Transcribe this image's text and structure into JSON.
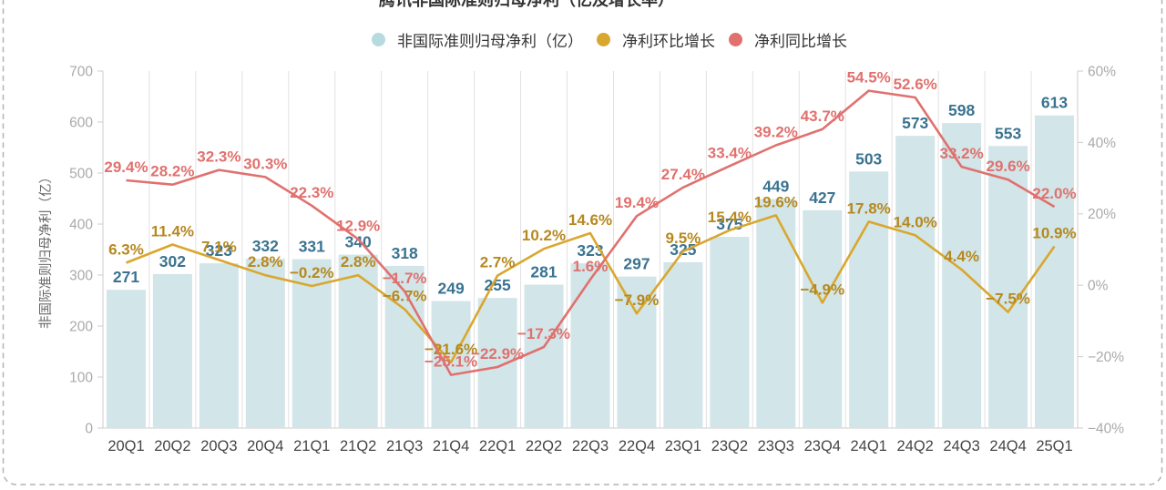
{
  "title": "腾讯非国际准则归母净利（亿及增长率）",
  "legend": {
    "items": [
      {
        "label": "非国际准则归母净利（亿）",
        "color": "#b5dbdf"
      },
      {
        "label": "净利环比增长",
        "color": "#d9a72f"
      },
      {
        "label": "净利同比增长",
        "color": "#e0716e"
      }
    ]
  },
  "chart_data": {
    "type": "bar+line",
    "categories": [
      "20Q1",
      "20Q2",
      "20Q3",
      "20Q4",
      "21Q1",
      "21Q2",
      "21Q3",
      "21Q4",
      "22Q1",
      "22Q2",
      "22Q3",
      "22Q4",
      "23Q1",
      "23Q2",
      "23Q3",
      "23Q4",
      "24Q1",
      "24Q2",
      "24Q3",
      "24Q4",
      "25Q1"
    ],
    "series": [
      {
        "name": "非国际准则归母净利（亿）",
        "type": "bar",
        "axis": "left",
        "color": "#d2e5e8",
        "label_color": "#3a7390",
        "values": [
          271,
          302,
          323,
          332,
          331,
          340,
          318,
          249,
          255,
          281,
          323,
          297,
          325,
          375,
          449,
          427,
          503,
          573,
          598,
          553,
          613
        ]
      },
      {
        "name": "净利环比增长",
        "type": "line",
        "axis": "right",
        "color": "#d9a72f",
        "label_color": "#b6891f",
        "values": [
          6.3,
          11.4,
          7.1,
          2.8,
          -0.2,
          2.8,
          -6.7,
          -21.6,
          2.7,
          10.2,
          14.6,
          -7.9,
          9.5,
          15.4,
          19.6,
          -4.9,
          17.8,
          14.0,
          4.4,
          -7.5,
          10.9
        ]
      },
      {
        "name": "净利同比增长",
        "type": "line",
        "axis": "right",
        "color": "#e0716e",
        "label_color": "#e0716e",
        "values": [
          29.4,
          28.2,
          32.3,
          30.3,
          22.3,
          12.9,
          -1.7,
          -25.1,
          -22.9,
          -17.3,
          1.6,
          19.4,
          27.4,
          33.4,
          39.2,
          43.7,
          54.5,
          52.6,
          33.2,
          29.6,
          22.0
        ]
      }
    ],
    "left_axis": {
      "title": "非国际准则归母净利（亿）",
      "min": 0,
      "max": 700,
      "tick_labels": [
        "0",
        "100",
        "200",
        "300",
        "400",
        "500",
        "600",
        "700"
      ]
    },
    "right_axis": {
      "min": -40,
      "max": 60,
      "tick_labels": [
        "−40%",
        "−20%",
        "0%",
        "20%",
        "40%",
        "60%"
      ]
    },
    "grid": "vertical-only",
    "legend_position": "top"
  }
}
